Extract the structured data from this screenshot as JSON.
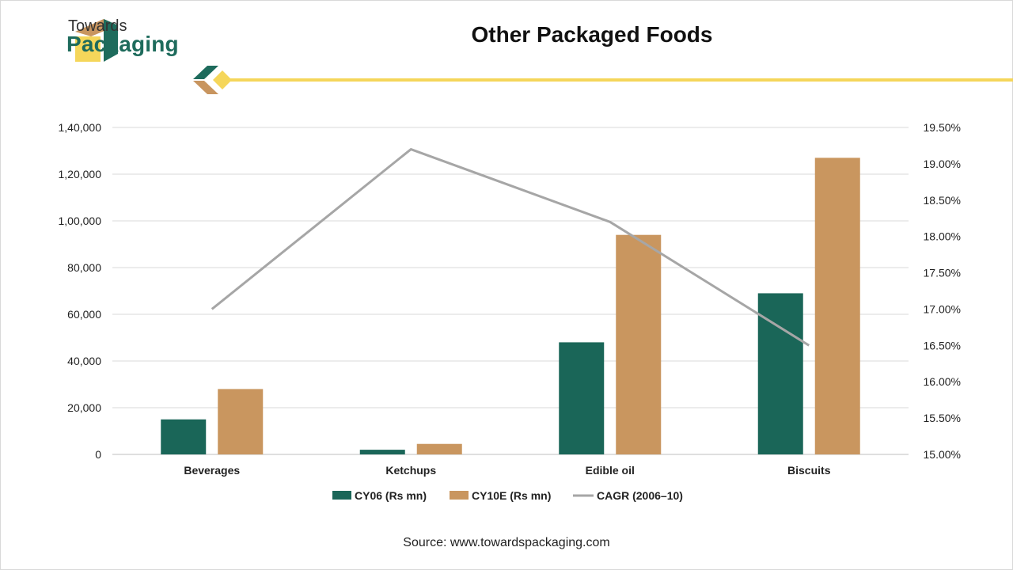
{
  "brand": {
    "line1": "Towards",
    "line2": "Packaging",
    "colors": {
      "teal": "#1e6b5c",
      "tan": "#c8955f",
      "yellow": "#f5d65a"
    }
  },
  "source_text": "Source: www.towardspackaging.com",
  "chart_data": {
    "type": "bar",
    "title": "Other Packaged Foods",
    "categories": [
      "Beverages",
      "Ketchups",
      "Edible oil",
      "Biscuits"
    ],
    "series": [
      {
        "name": "CY06 (Rs mn)",
        "type": "bar",
        "axis": "left",
        "color": "#1a6658",
        "values": [
          15000,
          2000,
          48000,
          69000
        ]
      },
      {
        "name": "CY10E (Rs mn)",
        "type": "bar",
        "axis": "left",
        "color": "#c9965f",
        "values": [
          28000,
          4500,
          94000,
          127000
        ]
      },
      {
        "name": "CAGR (2006–10)",
        "type": "line",
        "axis": "right",
        "color": "#a6a6a6",
        "values": [
          17.0,
          19.2,
          18.2,
          16.5
        ]
      }
    ],
    "y_left": {
      "ylim": [
        0,
        140000
      ],
      "tick_values": [
        0,
        20000,
        40000,
        60000,
        80000,
        100000,
        120000,
        140000
      ],
      "tick_labels": [
        "0",
        "20,000",
        "40,000",
        "60,000",
        "80,000",
        "1,00,000",
        "1,20,000",
        "1,40,000"
      ]
    },
    "y_right": {
      "ylim": [
        15.0,
        19.5
      ],
      "tick_values": [
        15.0,
        15.5,
        16.0,
        16.5,
        17.0,
        17.5,
        18.0,
        18.5,
        19.0,
        19.5
      ],
      "tick_labels": [
        "15.00%",
        "15.50%",
        "16.00%",
        "16.50%",
        "17.00%",
        "17.50%",
        "18.00%",
        "18.50%",
        "19.00%",
        "19.50%"
      ]
    },
    "grid": true,
    "legend_position": "bottom"
  }
}
